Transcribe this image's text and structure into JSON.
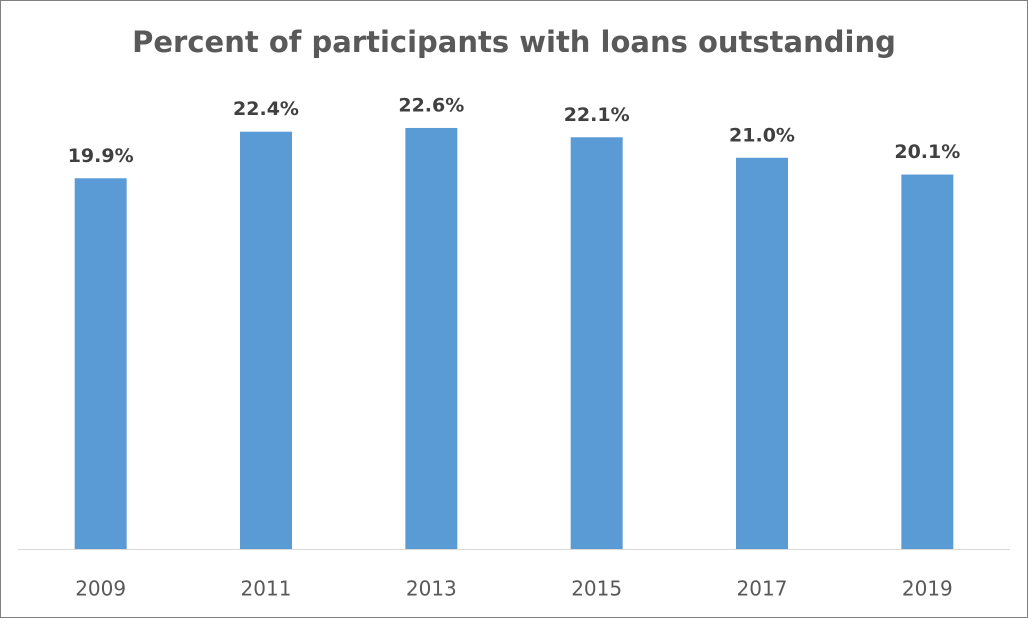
{
  "chart_data": {
    "type": "bar",
    "title": "Percent of participants with loans outstanding",
    "categories": [
      "2009",
      "2011",
      "2013",
      "2015",
      "2017",
      "2019"
    ],
    "values": [
      19.9,
      22.4,
      22.6,
      22.1,
      21.0,
      20.1
    ],
    "value_labels": [
      "19.9%",
      "22.4%",
      "22.6%",
      "22.1%",
      "21.0%",
      "20.1%"
    ],
    "color": "#5b9bd5"
  }
}
